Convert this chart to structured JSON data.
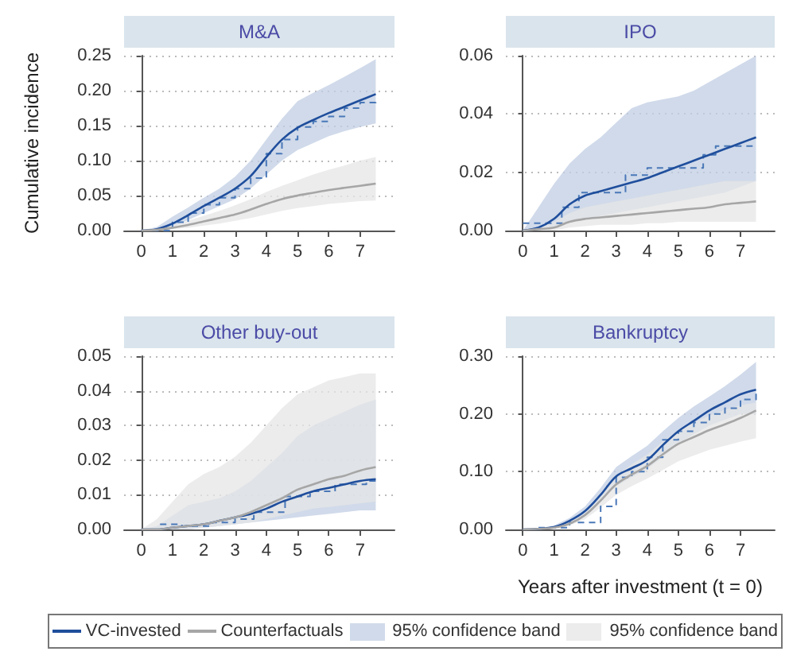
{
  "chart_data": [
    {
      "type": "line",
      "title": "M&A",
      "ylabel": "Cumulative incidence",
      "x": [
        0,
        0.5,
        1,
        1.5,
        2,
        2.5,
        3,
        3.5,
        4,
        4.5,
        5,
        5.5,
        6,
        6.5,
        7,
        7.5
      ],
      "xlim": [
        -0.55,
        8.1
      ],
      "xticks": [
        0,
        1,
        2,
        3,
        4,
        5,
        6,
        7
      ],
      "ylim": [
        0,
        0.25
      ],
      "yticks": [
        {
          "value": 0,
          "label": "0.00"
        },
        {
          "value": 0.05,
          "label": "0.05"
        },
        {
          "value": 0.1,
          "label": "0.10"
        },
        {
          "value": 0.15,
          "label": "0.15"
        },
        {
          "value": 0.2,
          "label": "0.20"
        },
        {
          "value": 0.25,
          "label": "0.25"
        }
      ],
      "grid": "y",
      "legend": false,
      "series": [
        {
          "color": "#1f4e9c",
          "values": [
            0,
            0.002,
            0.01,
            0.022,
            0.035,
            0.047,
            0.06,
            0.078,
            0.105,
            0.13,
            0.147,
            0.158,
            0.168,
            0.177,
            0.186,
            0.195
          ],
          "lower": [
            0,
            0,
            0.005,
            0.015,
            0.025,
            0.035,
            0.045,
            0.06,
            0.08,
            0.1,
            0.115,
            0.125,
            0.135,
            0.142,
            0.148,
            0.153
          ],
          "upper": [
            0,
            0.005,
            0.02,
            0.033,
            0.047,
            0.06,
            0.077,
            0.1,
            0.13,
            0.16,
            0.185,
            0.197,
            0.208,
            0.22,
            0.232,
            0.245
          ]
        },
        {
          "color": "#a6a6a6",
          "values": [
            0,
            0.001,
            0.004,
            0.008,
            0.013,
            0.018,
            0.023,
            0.03,
            0.038,
            0.045,
            0.05,
            0.054,
            0.058,
            0.061,
            0.064,
            0.067
          ],
          "lower": [
            0,
            0,
            0.002,
            0.004,
            0.007,
            0.01,
            0.014,
            0.018,
            0.023,
            0.028,
            0.032,
            0.035,
            0.038,
            0.04,
            0.042,
            0.043
          ],
          "upper": [
            0,
            0.002,
            0.008,
            0.014,
            0.021,
            0.028,
            0.036,
            0.045,
            0.055,
            0.064,
            0.072,
            0.08,
            0.087,
            0.093,
            0.1,
            0.105
          ]
        },
        {
          "type": "step",
          "color": "#4a78b8",
          "line_style": "dashed",
          "x": [
            0,
            1,
            1.5,
            2,
            2.5,
            3,
            3.5,
            4,
            4.5,
            5,
            5.5,
            6,
            6.5,
            7,
            7.5
          ],
          "values": [
            0,
            0.012,
            0.025,
            0.037,
            0.047,
            0.06,
            0.075,
            0.11,
            0.13,
            0.148,
            0.156,
            0.163,
            0.175,
            0.183,
            0.19
          ]
        }
      ]
    },
    {
      "type": "line",
      "title": "IPO",
      "x": [
        0,
        0.5,
        1,
        1.5,
        2,
        2.5,
        3,
        3.5,
        4,
        4.5,
        5,
        5.5,
        6,
        6.5,
        7,
        7.5
      ],
      "xlim": [
        -0.55,
        8.1
      ],
      "xticks": [
        0,
        1,
        2,
        3,
        4,
        5,
        6,
        7
      ],
      "ylim": [
        0,
        0.06
      ],
      "yticks": [
        {
          "value": 0,
          "label": "0.00"
        },
        {
          "value": 0.02,
          "label": "0.02"
        },
        {
          "value": 0.04,
          "label": "0.04"
        },
        {
          "value": 0.06,
          "label": "0.06"
        }
      ],
      "grid": "y",
      "legend": false,
      "series": [
        {
          "color": "#1f4e9c",
          "values": [
            0,
            0.001,
            0.004,
            0.009,
            0.012,
            0.0135,
            0.015,
            0.0165,
            0.018,
            0.02,
            0.022,
            0.024,
            0.026,
            0.028,
            0.03,
            0.032
          ],
          "lower": [
            0,
            0,
            0.001,
            0.003,
            0.004,
            0.005,
            0.006,
            0.007,
            0.008,
            0.009,
            0.01,
            0.011,
            0.012,
            0.013,
            0.015,
            0.017
          ],
          "upper": [
            0,
            0.008,
            0.016,
            0.023,
            0.028,
            0.032,
            0.037,
            0.042,
            0.044,
            0.045,
            0.046,
            0.048,
            0.051,
            0.054,
            0.057,
            0.06
          ]
        },
        {
          "color": "#a6a6a6",
          "values": [
            0,
            0.0005,
            0.001,
            0.003,
            0.004,
            0.0045,
            0.005,
            0.0055,
            0.006,
            0.0065,
            0.007,
            0.0075,
            0.008,
            0.009,
            0.0095,
            0.01
          ],
          "lower": [
            0,
            0,
            0,
            0.001,
            0.0015,
            0.002,
            0.002,
            0.002,
            0.0025,
            0.0025,
            0.003,
            0.003,
            0.003,
            0.003,
            0.003,
            0.003
          ],
          "upper": [
            0,
            0.001,
            0.003,
            0.006,
            0.008,
            0.009,
            0.01,
            0.011,
            0.012,
            0.013,
            0.014,
            0.015,
            0.016,
            0.017,
            0.017,
            0.017
          ]
        },
        {
          "type": "step",
          "color": "#4a78b8",
          "line_style": "dashed",
          "x": [
            0,
            1.25,
            1.8,
            3.3,
            4,
            5.8,
            6.2,
            7.5
          ],
          "values": [
            0.0025,
            0.008,
            0.013,
            0.019,
            0.0215,
            0.026,
            0.029,
            0.029
          ]
        }
      ]
    },
    {
      "type": "line",
      "title": "Other buy-out",
      "x": [
        0,
        0.5,
        1,
        1.5,
        2,
        2.5,
        3,
        3.5,
        4,
        4.5,
        5,
        5.5,
        6,
        6.5,
        7,
        7.5
      ],
      "xlim": [
        -0.55,
        8.1
      ],
      "xticks": [
        0,
        1,
        2,
        3,
        4,
        5,
        6,
        7
      ],
      "ylim": [
        0,
        0.05
      ],
      "yticks": [
        {
          "value": 0,
          "label": "0.00"
        },
        {
          "value": 0.01,
          "label": "0.01"
        },
        {
          "value": 0.02,
          "label": "0.02"
        },
        {
          "value": 0.03,
          "label": "0.03"
        },
        {
          "value": 0.04,
          "label": "0.04"
        },
        {
          "value": 0.05,
          "label": "0.05"
        }
      ],
      "grid": "y",
      "legend": false,
      "series": [
        {
          "color": "#1f4e9c",
          "values": [
            0,
            0,
            0.0005,
            0.001,
            0.0015,
            0.0025,
            0.0035,
            0.0045,
            0.006,
            0.008,
            0.0095,
            0.011,
            0.012,
            0.013,
            0.014,
            0.0145
          ],
          "lower": [
            0,
            0,
            0,
            0,
            0.0005,
            0.001,
            0.0015,
            0.002,
            0.0025,
            0.003,
            0.0035,
            0.004,
            0.0045,
            0.005,
            0.0055,
            0.0055
          ],
          "upper": [
            0,
            0.001,
            0.004,
            0.007,
            0.008,
            0.009,
            0.011,
            0.014,
            0.018,
            0.022,
            0.027,
            0.03,
            0.032,
            0.034,
            0.036,
            0.0375
          ]
        },
        {
          "color": "#a6a6a6",
          "values": [
            0,
            0,
            0.0005,
            0.001,
            0.0015,
            0.0025,
            0.0035,
            0.005,
            0.007,
            0.009,
            0.0115,
            0.013,
            0.0145,
            0.0155,
            0.017,
            0.018
          ],
          "lower": [
            0,
            0,
            0,
            0,
            0.0005,
            0.001,
            0.0015,
            0.002,
            0.003,
            0.004,
            0.005,
            0.006,
            0.0065,
            0.007,
            0.0075,
            0.008
          ],
          "upper": [
            0,
            0.003,
            0.008,
            0.013,
            0.016,
            0.018,
            0.021,
            0.025,
            0.03,
            0.035,
            0.039,
            0.041,
            0.043,
            0.044,
            0.045,
            0.045
          ]
        },
        {
          "type": "step",
          "color": "#4a78b8",
          "line_style": "dashed",
          "x": [
            0.6,
            1.3,
            2.2,
            3,
            3.6,
            4.6,
            5.4,
            6.2,
            7.2,
            7.5
          ],
          "values": [
            0.0015,
            0.001,
            0.002,
            0.003,
            0.005,
            0.0095,
            0.011,
            0.013,
            0.014,
            0.014
          ]
        }
      ]
    },
    {
      "type": "line",
      "title": "Bankruptcy",
      "xlabel": "Years after investment (t = 0)",
      "x": [
        0,
        0.5,
        1,
        1.5,
        2,
        2.5,
        3,
        3.5,
        4,
        4.5,
        5,
        5.5,
        6,
        6.5,
        7,
        7.5
      ],
      "xlim": [
        -0.55,
        8.1
      ],
      "xticks": [
        0,
        1,
        2,
        3,
        4,
        5,
        6,
        7
      ],
      "ylim": [
        0,
        0.3
      ],
      "yticks": [
        {
          "value": 0,
          "label": "0.00"
        },
        {
          "value": 0.1,
          "label": "0.10"
        },
        {
          "value": 0.2,
          "label": "0.20"
        },
        {
          "value": 0.3,
          "label": "0.30"
        }
      ],
      "grid": "y",
      "legend": "bottom",
      "annotations": [
        "95% confidence band",
        "95% confidence band"
      ],
      "series": [
        {
          "name": "VC-invested",
          "color": "#1f4e9c",
          "values": [
            0,
            0.001,
            0.004,
            0.015,
            0.032,
            0.06,
            0.092,
            0.106,
            0.12,
            0.146,
            0.17,
            0.188,
            0.206,
            0.22,
            0.234,
            0.242
          ],
          "lower": [
            0,
            0,
            0.002,
            0.01,
            0.024,
            0.048,
            0.075,
            0.09,
            0.105,
            0.125,
            0.148,
            0.165,
            0.18,
            0.19,
            0.2,
            0.2
          ],
          "upper": [
            0,
            0.002,
            0.007,
            0.02,
            0.04,
            0.072,
            0.108,
            0.127,
            0.145,
            0.17,
            0.193,
            0.213,
            0.23,
            0.248,
            0.268,
            0.29
          ]
        },
        {
          "name": "Counterfactuals",
          "color": "#a6a6a6",
          "values": [
            0,
            0.001,
            0.003,
            0.01,
            0.025,
            0.05,
            0.078,
            0.095,
            0.11,
            0.13,
            0.148,
            0.16,
            0.172,
            0.182,
            0.193,
            0.206
          ],
          "lower": [
            0,
            0,
            0.002,
            0.007,
            0.018,
            0.038,
            0.06,
            0.075,
            0.088,
            0.103,
            0.118,
            0.128,
            0.138,
            0.145,
            0.152,
            0.158
          ],
          "upper": [
            0,
            0.002,
            0.005,
            0.014,
            0.032,
            0.062,
            0.093,
            0.113,
            0.13,
            0.152,
            0.172,
            0.185,
            0.197,
            0.207,
            0.215,
            0.22
          ]
        },
        {
          "type": "step",
          "color": "#4a78b8",
          "line_style": "dashed",
          "x": [
            0.5,
            1.5,
            2.5,
            3,
            3.5,
            4,
            4.5,
            5,
            5.5,
            6,
            6.5,
            7,
            7.5
          ],
          "values": [
            0.003,
            0.012,
            0.04,
            0.09,
            0.1,
            0.125,
            0.155,
            0.17,
            0.185,
            0.2,
            0.21,
            0.225,
            0.235
          ]
        }
      ]
    }
  ]
}
